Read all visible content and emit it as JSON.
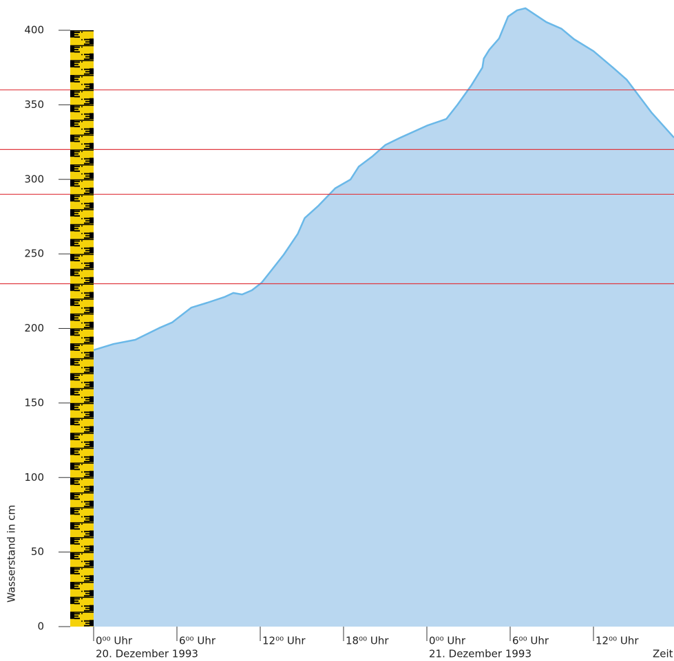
{
  "chart_data": {
    "type": "area",
    "y_label": "Wasserstand in cm",
    "x_label": "Zeit",
    "x": [
      0,
      1.44,
      3.0,
      4.7,
      5.65,
      7.04,
      8.2,
      9.4,
      10.06,
      10.7,
      11.4,
      12.1,
      12.84,
      13.7,
      14.7,
      15.2,
      16.2,
      17.4,
      18.5,
      19.1,
      20.1,
      21.0,
      22.1,
      24.0,
      25.4,
      26.2,
      27.2,
      28.0,
      28.1,
      28.5,
      29.2,
      29.85,
      30.5,
      31.1,
      32.6,
      33.7,
      34.6,
      36.0,
      37.4,
      38.4,
      40.2,
      41.8
    ],
    "values": [
      185.5,
      189.6,
      192.4,
      200.2,
      204,
      214,
      217.3,
      221,
      223.8,
      222.8,
      225.6,
      230.7,
      239.4,
      249.6,
      263.4,
      274,
      282.4,
      294,
      299.9,
      308.6,
      315.6,
      323,
      328,
      336,
      340.5,
      350,
      363,
      375,
      381,
      387,
      394.5,
      409.2,
      413.4,
      414.8,
      405.5,
      401,
      394,
      386,
      375,
      366.8,
      344.6,
      328
    ],
    "color": "#b9d7f0",
    "line_color": "#6ab8e8",
    "xlim": [
      0,
      41.8
    ],
    "ylim": [
      0,
      400
    ],
    "yticks": [
      0,
      50,
      100,
      150,
      200,
      250,
      300,
      350,
      400
    ],
    "xticks": [
      {
        "value": 0,
        "label": "0⁰⁰ Uhr"
      },
      {
        "value": 6,
        "label": "6⁰⁰ Uhr"
      },
      {
        "value": 12,
        "label": "12⁰⁰ Uhr"
      },
      {
        "value": 18,
        "label": "18⁰⁰ Uhr"
      },
      {
        "value": 24,
        "label": "0⁰⁰ Uhr"
      },
      {
        "value": 30,
        "label": "6⁰⁰ Uhr"
      },
      {
        "value": 36,
        "label": "12⁰⁰ Uhr"
      }
    ],
    "date_labels": [
      {
        "value": 0,
        "label": "20. Dezember 1993"
      },
      {
        "value": 24,
        "label": "21. Dezember 1993"
      }
    ],
    "hlines": [
      230,
      290,
      320,
      360
    ],
    "hline_color": "#e0383f"
  }
}
